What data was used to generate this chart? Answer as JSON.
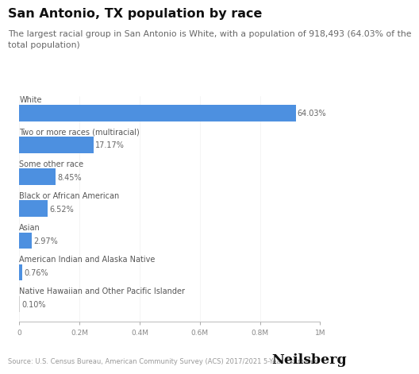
{
  "title": "San Antonio, TX population by race",
  "subtitle_line1": "The largest racial group in San Antonio is White, with a population of 918,493 (64.03% of the",
  "subtitle_line2": "total population)",
  "categories": [
    "White",
    "Two or more races (multiracial)",
    "Some other race",
    "Black or African American",
    "Asian",
    "American Indian and Alaska Native",
    "Native Hawaiian and Other Pacific Islander"
  ],
  "values": [
    918493,
    246370,
    121280,
    93590,
    42620,
    10910,
    1435
  ],
  "percentages": [
    "64.03%",
    "17.17%",
    "8.45%",
    "6.52%",
    "2.97%",
    "0.76%",
    "0.10%"
  ],
  "bar_color": "#4D90E0",
  "last_bar_color": "#d0d0d0",
  "background_color": "#ffffff",
  "xlim_max": 1000000,
  "source": "Source: U.S. Census Bureau, American Community Survey (ACS) 2017/2021 5-Year Estimates",
  "branding": "Neilsberg",
  "title_fontsize": 11.5,
  "subtitle_fontsize": 7.8,
  "label_fontsize": 7.0,
  "pct_fontsize": 7.0,
  "tick_fontsize": 6.5,
  "source_fontsize": 6.0,
  "brand_fontsize": 12.5
}
